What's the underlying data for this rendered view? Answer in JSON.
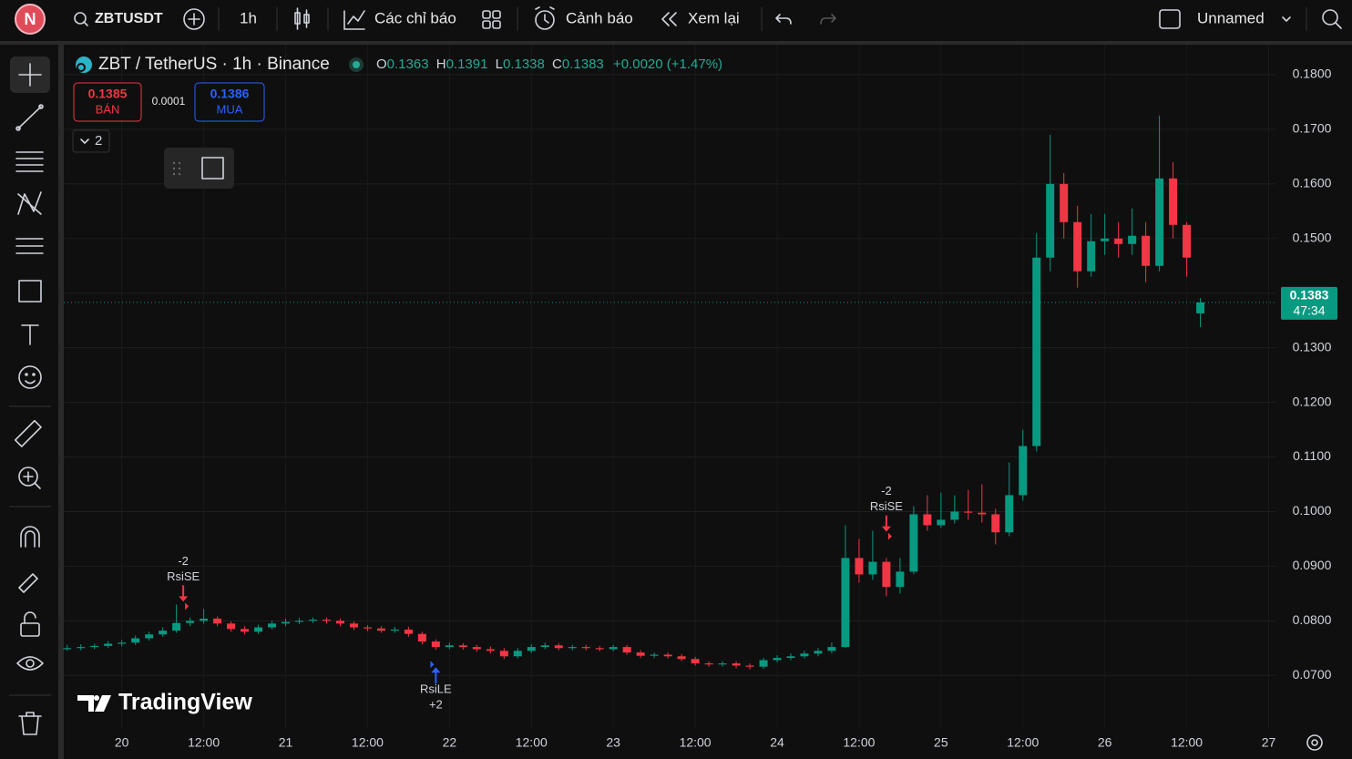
{
  "toolbar": {
    "avatar": "N",
    "symbol": "ZBTUSDT",
    "interval": "1h",
    "indicators": "Các chỉ báo",
    "alerts": "Cảnh báo",
    "replay": "Xem lại",
    "layout_name": "Unnamed"
  },
  "legend": {
    "title": "ZBT / TetherUS · 1h · Binance",
    "ohlc": [
      {
        "key": "O",
        "value": "0.1363"
      },
      {
        "key": "H",
        "value": "0.1391"
      },
      {
        "key": "L",
        "value": "0.1338"
      },
      {
        "key": "C",
        "value": "0.1383"
      }
    ],
    "change": "+0.0020 (+1.47%)",
    "sell": {
      "price": "0.1385",
      "label": "BÁN"
    },
    "spread": "0.0001",
    "buy": {
      "price": "0.1386",
      "label": "MUA"
    },
    "collapsed_count": "2"
  },
  "watermark": "TradingView",
  "chart_data": {
    "type": "candlestick",
    "x": [
      -8,
      -6,
      -4,
      -2,
      0,
      2,
      4,
      6,
      8,
      10,
      12,
      14,
      16,
      18,
      20,
      22,
      24,
      26,
      28,
      30,
      32,
      34,
      36,
      38,
      40,
      42,
      44,
      46,
      48,
      50,
      52,
      54,
      56,
      58,
      60,
      62,
      64,
      66,
      68,
      70,
      72,
      74,
      76,
      78,
      80,
      82,
      84,
      86,
      88,
      90,
      92,
      94,
      96,
      98,
      100,
      102,
      104,
      106,
      108,
      110,
      112,
      114,
      116,
      118,
      120,
      122,
      124,
      126,
      128,
      130,
      132,
      134,
      136,
      138,
      140,
      142,
      144,
      146,
      148,
      150,
      152,
      154,
      156,
      158
    ],
    "open": [
      0.0748,
      0.075,
      0.0752,
      0.0754,
      0.0758,
      0.076,
      0.0768,
      0.0775,
      0.0782,
      0.0796,
      0.08,
      0.0804,
      0.0795,
      0.0785,
      0.078,
      0.0788,
      0.0795,
      0.0798,
      0.08,
      0.0802,
      0.08,
      0.0795,
      0.0788,
      0.0786,
      0.0782,
      0.0784,
      0.0776,
      0.0762,
      0.0752,
      0.0755,
      0.0752,
      0.0748,
      0.0745,
      0.0735,
      0.0745,
      0.0752,
      0.0755,
      0.075,
      0.0752,
      0.075,
      0.0748,
      0.0752,
      0.0742,
      0.0736,
      0.0738,
      0.0735,
      0.073,
      0.0722,
      0.072,
      0.0722,
      0.0718,
      0.0716,
      0.0728,
      0.0732,
      0.0735,
      0.074,
      0.0745,
      0.0752,
      0.0915,
      0.0885,
      0.0908,
      0.0862,
      0.089,
      0.0995,
      0.0975,
      0.0985,
      0.1,
      0.0998,
      0.0995,
      0.0962,
      0.103,
      0.112,
      0.1465,
      0.16,
      0.153,
      0.144,
      0.1495,
      0.15,
      0.149,
      0.1505,
      0.145,
      0.161,
      0.1525,
      0.1363
    ],
    "high": [
      0.0756,
      0.0757,
      0.0758,
      0.0763,
      0.0765,
      0.0773,
      0.078,
      0.0788,
      0.083,
      0.0806,
      0.0822,
      0.0808,
      0.0799,
      0.079,
      0.0793,
      0.08,
      0.0804,
      0.0805,
      0.0806,
      0.0806,
      0.0804,
      0.0799,
      0.0792,
      0.079,
      0.0789,
      0.0789,
      0.078,
      0.0766,
      0.076,
      0.0759,
      0.0756,
      0.0753,
      0.075,
      0.075,
      0.0757,
      0.076,
      0.0759,
      0.0756,
      0.0756,
      0.0754,
      0.0756,
      0.0756,
      0.0746,
      0.0742,
      0.0742,
      0.0739,
      0.0734,
      0.0726,
      0.0726,
      0.0726,
      0.0722,
      0.0732,
      0.0737,
      0.074,
      0.0745,
      0.075,
      0.076,
      0.0975,
      0.095,
      0.0965,
      0.0915,
      0.0915,
      0.101,
      0.103,
      0.1035,
      0.103,
      0.104,
      0.105,
      0.1005,
      0.109,
      0.115,
      0.151,
      0.169,
      0.162,
      0.156,
      0.1545,
      0.1545,
      0.153,
      0.1555,
      0.153,
      0.1725,
      0.164,
      0.153,
      0.1391
    ],
    "low": [
      0.0745,
      0.0746,
      0.0748,
      0.075,
      0.0753,
      0.0756,
      0.0764,
      0.0771,
      0.0778,
      0.079,
      0.0795,
      0.079,
      0.078,
      0.0775,
      0.0776,
      0.0784,
      0.079,
      0.0794,
      0.0796,
      0.0795,
      0.079,
      0.0783,
      0.0781,
      0.0778,
      0.0778,
      0.0771,
      0.0757,
      0.0747,
      0.0748,
      0.0747,
      0.0743,
      0.074,
      0.073,
      0.0731,
      0.0741,
      0.0748,
      0.0746,
      0.0746,
      0.0746,
      0.0744,
      0.0744,
      0.0738,
      0.0732,
      0.0732,
      0.0731,
      0.0726,
      0.0718,
      0.0716,
      0.0716,
      0.0713,
      0.0711,
      0.0712,
      0.0724,
      0.0728,
      0.0731,
      0.0735,
      0.074,
      0.075,
      0.087,
      0.0875,
      0.0845,
      0.085,
      0.0885,
      0.0965,
      0.097,
      0.0978,
      0.0985,
      0.098,
      0.094,
      0.0955,
      0.102,
      0.111,
      0.144,
      0.15,
      0.141,
      0.143,
      0.147,
      0.1465,
      0.147,
      0.142,
      0.144,
      0.15,
      0.143,
      0.1338
    ],
    "close": [
      0.075,
      0.0752,
      0.0754,
      0.0758,
      0.076,
      0.0768,
      0.0775,
      0.0782,
      0.0796,
      0.08,
      0.0804,
      0.0795,
      0.0785,
      0.078,
      0.0788,
      0.0795,
      0.0798,
      0.08,
      0.0802,
      0.08,
      0.0795,
      0.0788,
      0.0786,
      0.0782,
      0.0784,
      0.0776,
      0.0762,
      0.0752,
      0.0755,
      0.0752,
      0.0748,
      0.0745,
      0.0735,
      0.0745,
      0.0752,
      0.0755,
      0.075,
      0.0752,
      0.075,
      0.0748,
      0.0752,
      0.0742,
      0.0736,
      0.0738,
      0.0735,
      0.073,
      0.0722,
      0.072,
      0.0722,
      0.0718,
      0.0716,
      0.0728,
      0.0732,
      0.0735,
      0.074,
      0.0745,
      0.0752,
      0.0915,
      0.0885,
      0.0908,
      0.0862,
      0.089,
      0.0995,
      0.0975,
      0.0985,
      0.1,
      0.0998,
      0.0995,
      0.0962,
      0.103,
      0.112,
      0.1465,
      0.16,
      0.153,
      0.144,
      0.1495,
      0.15,
      0.149,
      0.1505,
      0.145,
      0.161,
      0.1525,
      0.1465,
      0.1383
    ],
    "up_color": "#089981",
    "down_color": "#f23645",
    "xlim": [
      -8.5,
      169
    ],
    "ylim": [
      0.0602,
      0.1855
    ],
    "xticks": [
      {
        "value": 0,
        "label": "20"
      },
      {
        "value": 12,
        "label": "12:00"
      },
      {
        "value": 24,
        "label": "21"
      },
      {
        "value": 36,
        "label": "12:00"
      },
      {
        "value": 48,
        "label": "22"
      },
      {
        "value": 60,
        "label": "12:00"
      },
      {
        "value": 72,
        "label": "23"
      },
      {
        "value": 84,
        "label": "12:00"
      },
      {
        "value": 96,
        "label": "24"
      },
      {
        "value": 108,
        "label": "12:00"
      },
      {
        "value": 120,
        "label": "25"
      },
      {
        "value": 132,
        "label": "12:00"
      },
      {
        "value": 144,
        "label": "26"
      },
      {
        "value": 156,
        "label": "12:00"
      },
      {
        "value": 168,
        "label": "27"
      }
    ],
    "yticks": [
      {
        "value": 0.07,
        "label": "0.0700"
      },
      {
        "value": 0.08,
        "label": "0.0800"
      },
      {
        "value": 0.09,
        "label": "0.0900"
      },
      {
        "value": 0.1,
        "label": "0.1000"
      },
      {
        "value": 0.11,
        "label": "0.1100"
      },
      {
        "value": 0.12,
        "label": "0.1200"
      },
      {
        "value": 0.13,
        "label": "0.1300"
      },
      {
        "value": 0.14,
        "label": "0.1400"
      },
      {
        "value": 0.15,
        "label": "0.1500"
      },
      {
        "value": 0.16,
        "label": "0.1600"
      },
      {
        "value": 0.17,
        "label": "0.1700"
      },
      {
        "value": 0.18,
        "label": "0.1800"
      }
    ],
    "grid": true,
    "last_price": {
      "value": 0.1383,
      "label": "0.1383",
      "countdown": "47:34"
    },
    "signals": [
      {
        "x": 9,
        "value": 0.0835,
        "side": "short",
        "name": "RsiSE",
        "qty": "-2"
      },
      {
        "x": 46,
        "value": 0.0715,
        "side": "long",
        "name": "RsiLE",
        "qty": "+2"
      },
      {
        "x": 112,
        "value": 0.0963,
        "side": "short",
        "name": "RsiSE",
        "qty": "-2"
      }
    ]
  }
}
